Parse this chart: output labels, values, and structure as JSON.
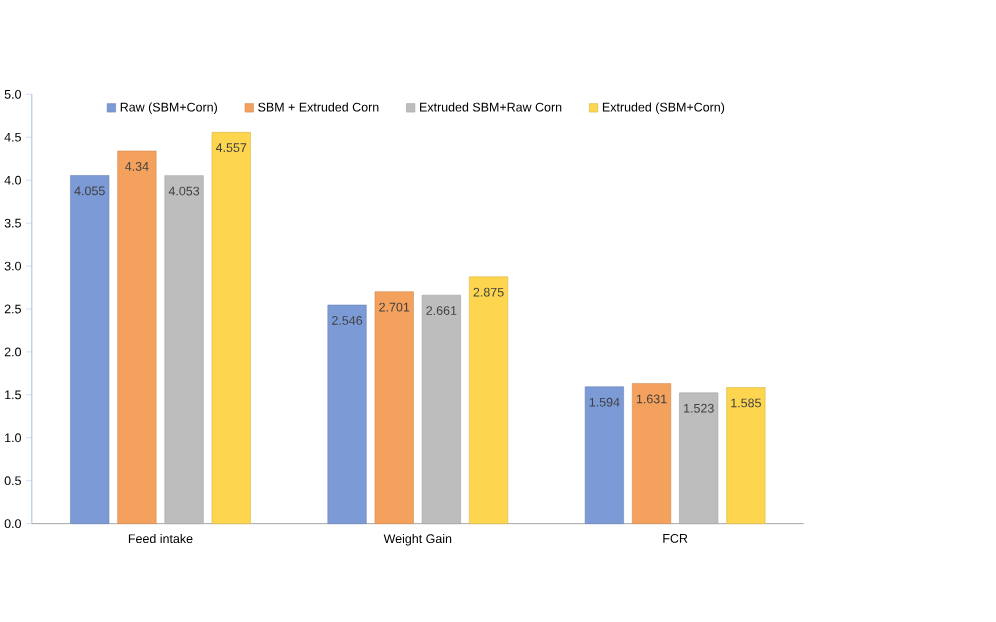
{
  "chart_data": {
    "type": "bar",
    "categories": [
      "Feed intake",
      "Weight Gain",
      "FCR"
    ],
    "series": [
      {
        "name": "Raw (SBM+Corn)",
        "color": "#7b9ad6",
        "values": [
          4.055,
          2.546,
          1.594
        ]
      },
      {
        "name": "SBM + Extruded Corn",
        "color": "#f4a15d",
        "values": [
          4.34,
          2.701,
          1.631
        ]
      },
      {
        "name": "Extruded SBM+Raw Corn",
        "color": "#bdbdbd",
        "values": [
          4.053,
          2.661,
          1.523
        ]
      },
      {
        "name": "Extruded (SBM+Corn)",
        "color": "#fdd54e",
        "values": [
          4.557,
          2.875,
          1.585
        ]
      }
    ],
    "ylim": [
      0,
      5
    ],
    "yticks": [
      {
        "value": 0,
        "label": "0.0"
      },
      {
        "value": 0.5,
        "label": "0.5"
      },
      {
        "value": 1,
        "label": "1.0"
      },
      {
        "value": 1.5,
        "label": "1.5"
      },
      {
        "value": 2,
        "label": "2.0"
      },
      {
        "value": 2.5,
        "label": "2.5"
      },
      {
        "value": 3,
        "label": "3.0"
      },
      {
        "value": 3.5,
        "label": "3.5"
      },
      {
        "value": 4,
        "label": "4.0"
      },
      {
        "value": 4.5,
        "label": "4.5"
      },
      {
        "value": 5,
        "label": "5.0"
      }
    ],
    "grid": false,
    "legend": "top",
    "data_labels": true
  }
}
